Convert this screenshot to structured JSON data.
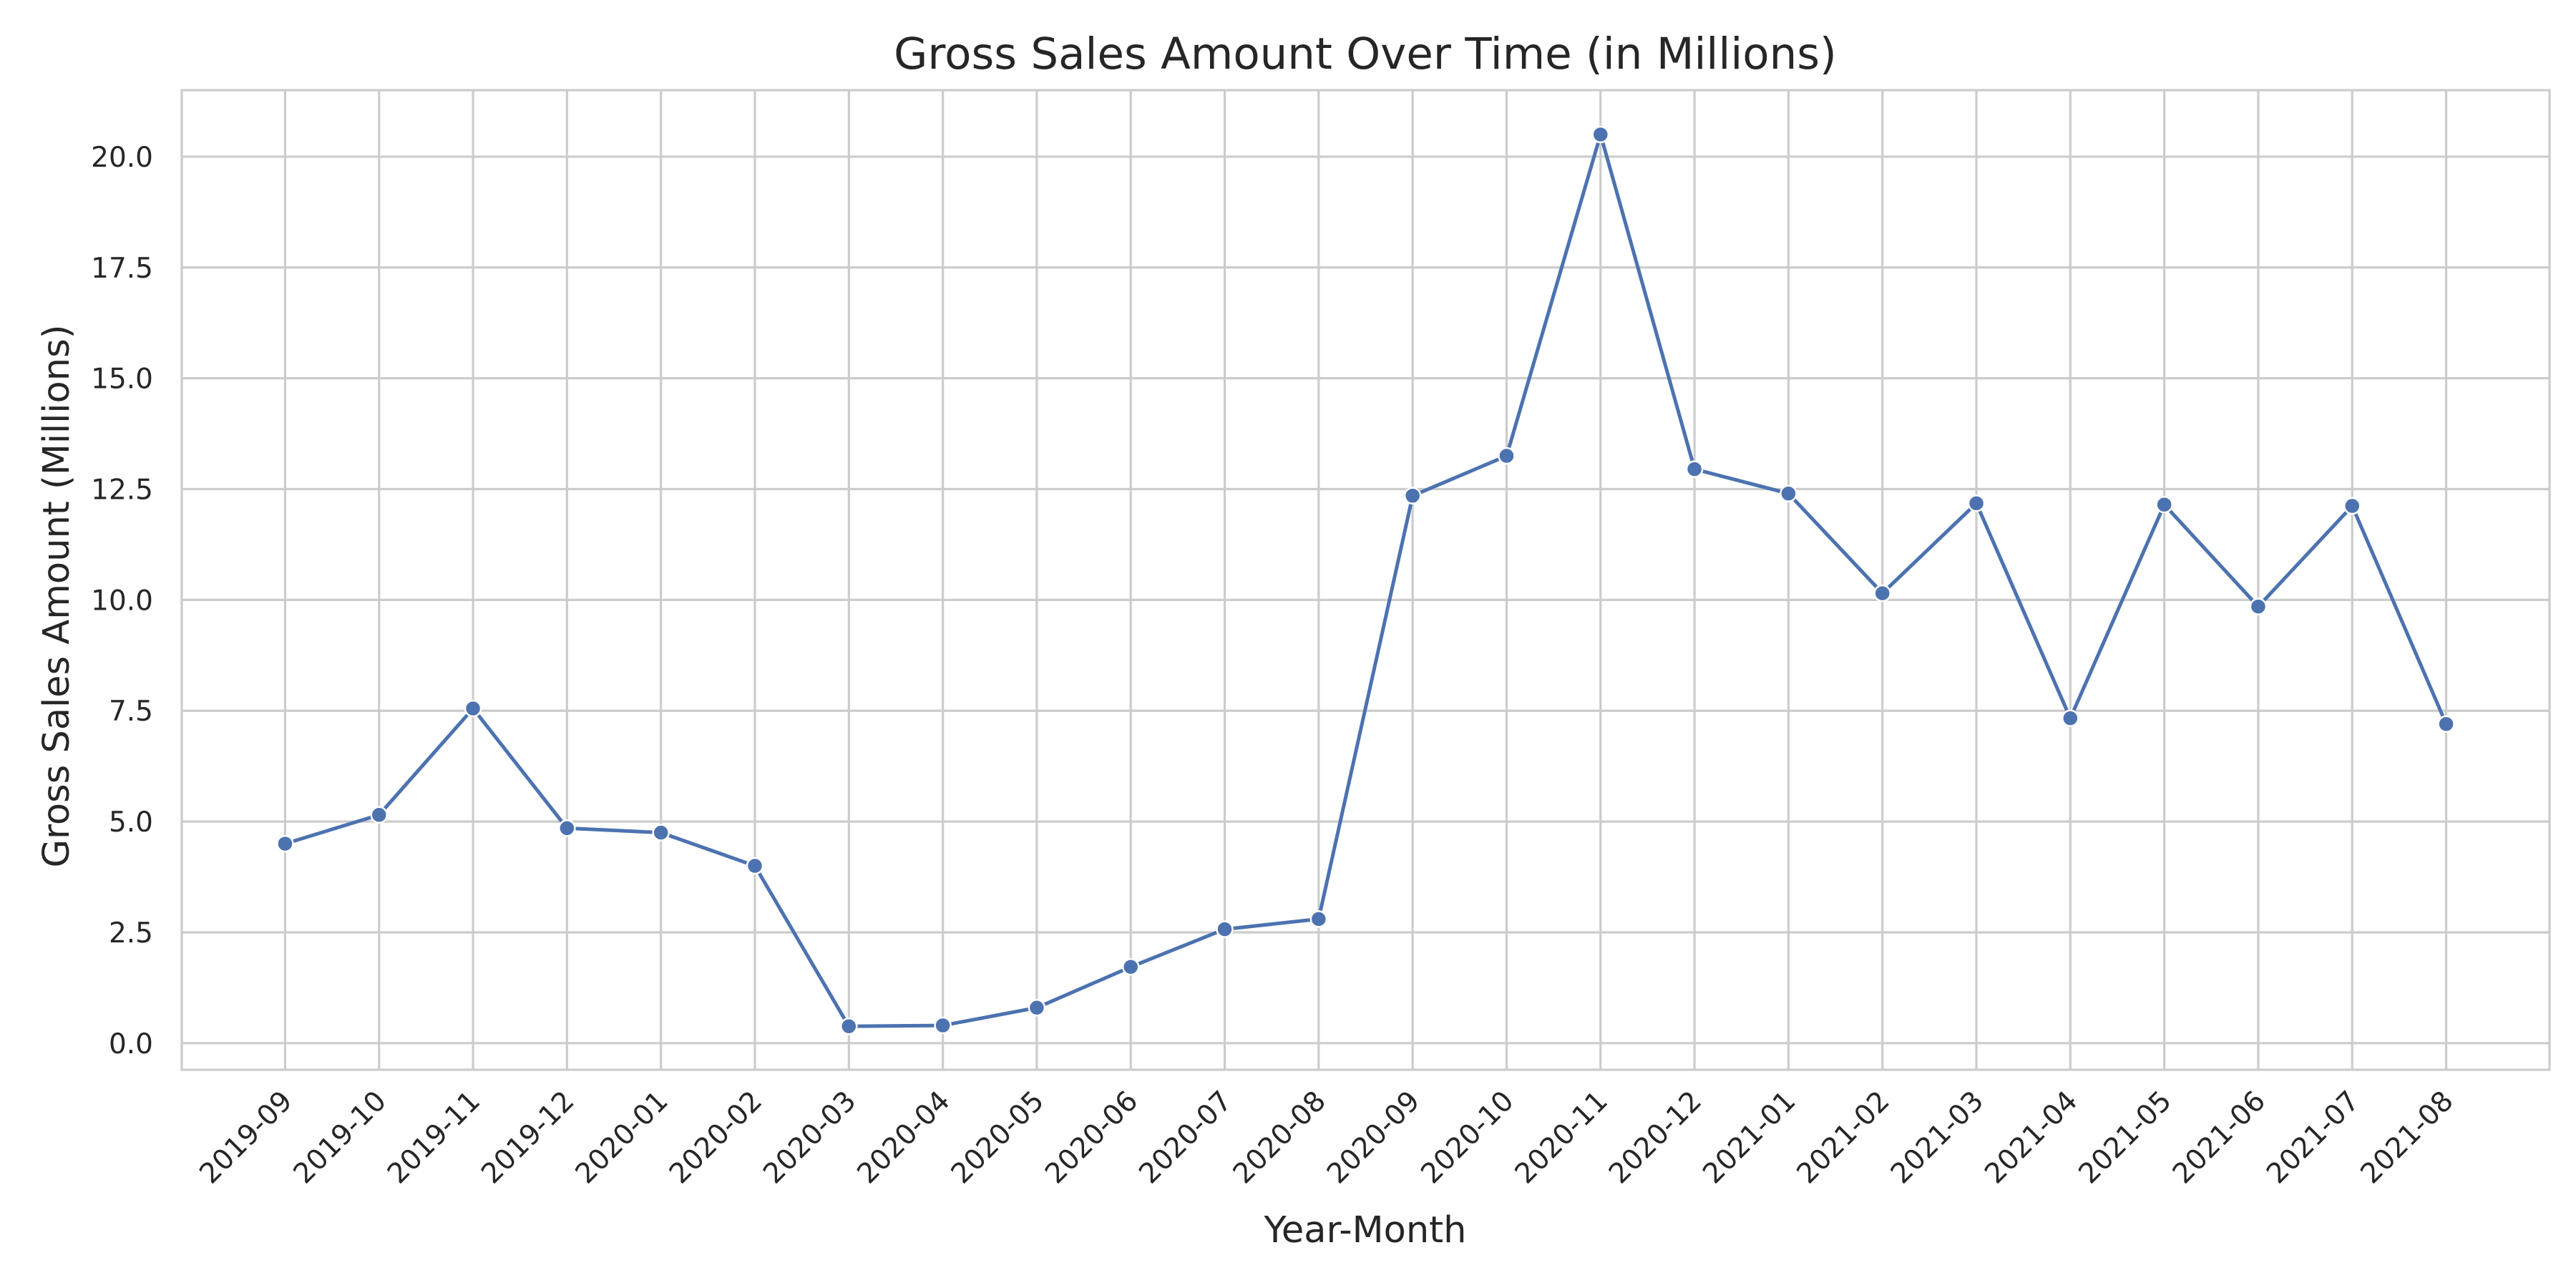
{
  "chart_data": {
    "type": "line",
    "title": "Gross Sales Amount Over Time (in Millions)",
    "xlabel": "Year-Month",
    "ylabel": "Gross Sales Amount (Millions)",
    "categories": [
      "2019-09",
      "2019-10",
      "2019-11",
      "2019-12",
      "2020-01",
      "2020-02",
      "2020-03",
      "2020-04",
      "2020-05",
      "2020-06",
      "2020-07",
      "2020-08",
      "2020-09",
      "2020-10",
      "2020-11",
      "2020-12",
      "2021-01",
      "2021-02",
      "2021-03",
      "2021-04",
      "2021-05",
      "2021-06",
      "2021-07",
      "2021-08"
    ],
    "series": [
      {
        "name": "Gross Sales Amount",
        "values": [
          4.5,
          5.15,
          7.55,
          4.85,
          4.75,
          4.0,
          0.38,
          0.4,
          0.8,
          1.72,
          2.57,
          2.8,
          12.35,
          13.25,
          20.5,
          12.95,
          12.4,
          10.15,
          12.18,
          7.33,
          12.15,
          9.85,
          12.12,
          7.2
        ]
      }
    ],
    "ylim": [
      -0.6,
      21.5
    ],
    "yticks": [
      0.0,
      2.5,
      5.0,
      7.5,
      10.0,
      12.5,
      15.0,
      17.5,
      20.0
    ],
    "ytick_labels": [
      "0.0",
      "2.5",
      "5.0",
      "7.5",
      "10.0",
      "12.5",
      "15.0",
      "17.5",
      "20.0"
    ],
    "grid": true,
    "legend": "none",
    "colors": {
      "line": "#4c72b0",
      "marker": "#4c72b0",
      "marker_edge": "#ffffff",
      "grid": "#cccccc",
      "frame": "#cccccc",
      "text": "#262626",
      "background": "#ffffff"
    }
  }
}
